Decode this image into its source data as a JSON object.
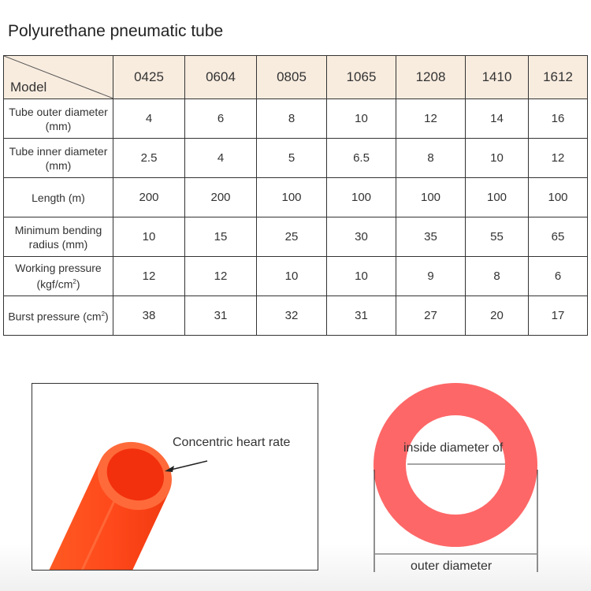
{
  "title": "Polyurethane pneumatic tube",
  "table": {
    "corner_label": "Model",
    "models": [
      "0425",
      "0604",
      "0805",
      "1065",
      "1208",
      "1410",
      "1612"
    ],
    "rows": [
      {
        "label_line1": "Tube outer diameter",
        "label_line2": "(mm)",
        "values": [
          "4",
          "6",
          "8",
          "10",
          "12",
          "14",
          "16"
        ]
      },
      {
        "label_line1": "Tube inner diameter",
        "label_line2": "(mm)",
        "values": [
          "2.5",
          "4",
          "5",
          "6.5",
          "8",
          "10",
          "12"
        ]
      },
      {
        "label_line1": "Length (m)",
        "label_line2": "",
        "values": [
          "200",
          "200",
          "100",
          "100",
          "100",
          "100",
          "100"
        ]
      },
      {
        "label_line1": "Minimum bending",
        "label_line2": "radius (mm)",
        "values": [
          "10",
          "15",
          "25",
          "30",
          "35",
          "55",
          "65"
        ]
      },
      {
        "label_line1": "Working pressure",
        "label_line2": "(kgf/cm",
        "sup": "2",
        "label_end": ")",
        "values": [
          "12",
          "12",
          "10",
          "10",
          "9",
          "8",
          "6"
        ]
      },
      {
        "label_line1": "Burst pressure (cm",
        "sup": "2",
        "label_end": ")",
        "values": [
          "38",
          "31",
          "32",
          "31",
          "27",
          "20",
          "17"
        ]
      }
    ],
    "header_bg": "#f8ecdf"
  },
  "photo": {
    "caption": "Concentric heart rate",
    "tube_color": "#ff4a1c"
  },
  "diagram": {
    "inner_label": "inside diameter of",
    "outer_label": "outer diameter",
    "ring_color": "#fe6767"
  }
}
